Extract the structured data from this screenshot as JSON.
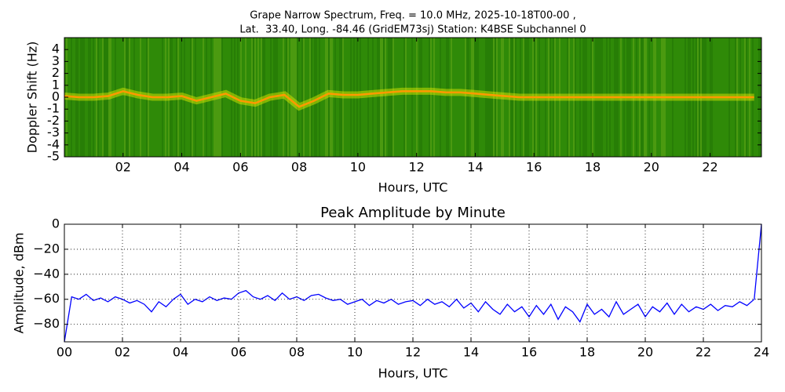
{
  "chart_data": [
    {
      "type": "spectrogram",
      "title": "Grape Narrow Spectrum, Freq. = 10.0 MHz, 2025-10-18T00-00 ,",
      "subtitle": "Lat.  33.40, Long. -84.46 (GridEM73sj) Station: K4BSE Subchannel 0",
      "x_label": "Hours, UTC",
      "y_label": "Doppler Shift (Hz)",
      "xlim": [
        0,
        23.75
      ],
      "ylim": [
        -5,
        5
      ],
      "xticks": [
        {
          "value": 2,
          "label": "02"
        },
        {
          "value": 4,
          "label": "04"
        },
        {
          "value": 6,
          "label": "06"
        },
        {
          "value": 8,
          "label": "08"
        },
        {
          "value": 10,
          "label": "10"
        },
        {
          "value": 12,
          "label": "12"
        },
        {
          "value": 14,
          "label": "14"
        },
        {
          "value": 16,
          "label": "16"
        },
        {
          "value": 18,
          "label": "18"
        },
        {
          "value": 20,
          "label": "20"
        },
        {
          "value": 22,
          "label": "22"
        }
      ],
      "yticks": [
        -5,
        -4,
        -3,
        -2,
        -1,
        0,
        1,
        2,
        3,
        4
      ],
      "background_color": "#2f8a08",
      "series": [
        {
          "color": "#ff9900",
          "x": [
            0,
            0.5,
            1,
            1.5,
            2,
            2.5,
            3,
            3.5,
            4,
            4.5,
            5,
            5.5,
            6,
            6.5,
            7,
            7.5,
            8,
            8.5,
            9,
            9.5,
            10,
            10.5,
            11,
            11.5,
            12,
            12.5,
            13,
            13.5,
            14,
            14.5,
            15,
            15.5,
            16,
            16.5,
            17,
            17.5,
            18,
            18.5,
            19,
            19.5,
            20,
            20.5,
            21,
            21.5,
            22,
            22.5,
            23,
            23.5
          ],
          "values": [
            0.1,
            0,
            0,
            0.1,
            0.5,
            0.2,
            0,
            0,
            0.1,
            -0.3,
            0,
            0.3,
            -0.3,
            -0.5,
            0,
            0.2,
            -0.8,
            -0.3,
            0.3,
            0.2,
            0.2,
            0.3,
            0.4,
            0.5,
            0.5,
            0.5,
            0.4,
            0.4,
            0.3,
            0.2,
            0.1,
            0,
            0,
            0,
            0,
            0,
            0,
            0,
            0,
            0,
            0,
            0,
            0,
            0,
            0,
            0,
            0,
            0
          ]
        }
      ]
    },
    {
      "type": "line",
      "title": "Peak Amplitude by Minute",
      "x_label": "Hours, UTC",
      "y_label": "Amplitude, dBm",
      "xlim": [
        0,
        24
      ],
      "ylim": [
        -94,
        0
      ],
      "grid": true,
      "xticks": [
        {
          "value": 0,
          "label": "00"
        },
        {
          "value": 2,
          "label": "02"
        },
        {
          "value": 4,
          "label": "04"
        },
        {
          "value": 6,
          "label": "06"
        },
        {
          "value": 8,
          "label": "08"
        },
        {
          "value": 10,
          "label": "10"
        },
        {
          "value": 12,
          "label": "12"
        },
        {
          "value": 14,
          "label": "14"
        },
        {
          "value": 16,
          "label": "16"
        },
        {
          "value": 18,
          "label": "18"
        },
        {
          "value": 20,
          "label": "20"
        },
        {
          "value": 22,
          "label": "22"
        },
        {
          "value": 24,
          "label": "24"
        }
      ],
      "yticks": [
        {
          "value": -80,
          "label": "−80"
        },
        {
          "value": -60,
          "label": "−60"
        },
        {
          "value": -40,
          "label": "−40"
        },
        {
          "value": -20,
          "label": "−20"
        },
        0
      ],
      "series": [
        {
          "color": "#0000ff",
          "x": [
            0,
            0.25,
            0.5,
            0.75,
            1,
            1.25,
            1.5,
            1.75,
            2,
            2.25,
            2.5,
            2.75,
            3,
            3.25,
            3.5,
            3.75,
            4,
            4.25,
            4.5,
            4.75,
            5,
            5.25,
            5.5,
            5.75,
            6,
            6.25,
            6.5,
            6.75,
            7,
            7.25,
            7.5,
            7.75,
            8,
            8.25,
            8.5,
            8.75,
            9,
            9.25,
            9.5,
            9.75,
            10,
            10.25,
            10.5,
            10.75,
            11,
            11.25,
            11.5,
            11.75,
            12,
            12.25,
            12.5,
            12.75,
            13,
            13.25,
            13.5,
            13.75,
            14,
            14.25,
            14.5,
            14.75,
            15,
            15.25,
            15.5,
            15.75,
            16,
            16.25,
            16.5,
            16.75,
            17,
            17.25,
            17.5,
            17.75,
            18,
            18.25,
            18.5,
            18.75,
            19,
            19.25,
            19.5,
            19.75,
            20,
            20.25,
            20.5,
            20.75,
            21,
            21.25,
            21.5,
            21.75,
            22,
            22.25,
            22.5,
            22.75,
            23,
            23.25,
            23.5,
            23.75,
            24
          ],
          "values": [
            -94,
            -58,
            -60,
            -56,
            -61,
            -59,
            -62,
            -58,
            -60,
            -63,
            -61,
            -64,
            -70,
            -62,
            -66,
            -60,
            -56,
            -64,
            -60,
            -62,
            -58,
            -61,
            -59,
            -60,
            -55,
            -53,
            -58,
            -60,
            -57,
            -61,
            -55,
            -60,
            -58,
            -61,
            -57,
            -56,
            -59,
            -61,
            -60,
            -64,
            -62,
            -60,
            -65,
            -61,
            -63,
            -60,
            -64,
            -62,
            -61,
            -65,
            -60,
            -64,
            -62,
            -66,
            -60,
            -67,
            -63,
            -70,
            -62,
            -68,
            -72,
            -64,
            -70,
            -66,
            -74,
            -65,
            -72,
            -64,
            -76,
            -66,
            -70,
            -78,
            -64,
            -72,
            -68,
            -74,
            -62,
            -72,
            -68,
            -64,
            -74,
            -66,
            -70,
            -63,
            -72,
            -64,
            -70,
            -66,
            -68,
            -64,
            -69,
            -65,
            -66,
            -62,
            -65,
            -60,
            0
          ]
        }
      ]
    }
  ]
}
